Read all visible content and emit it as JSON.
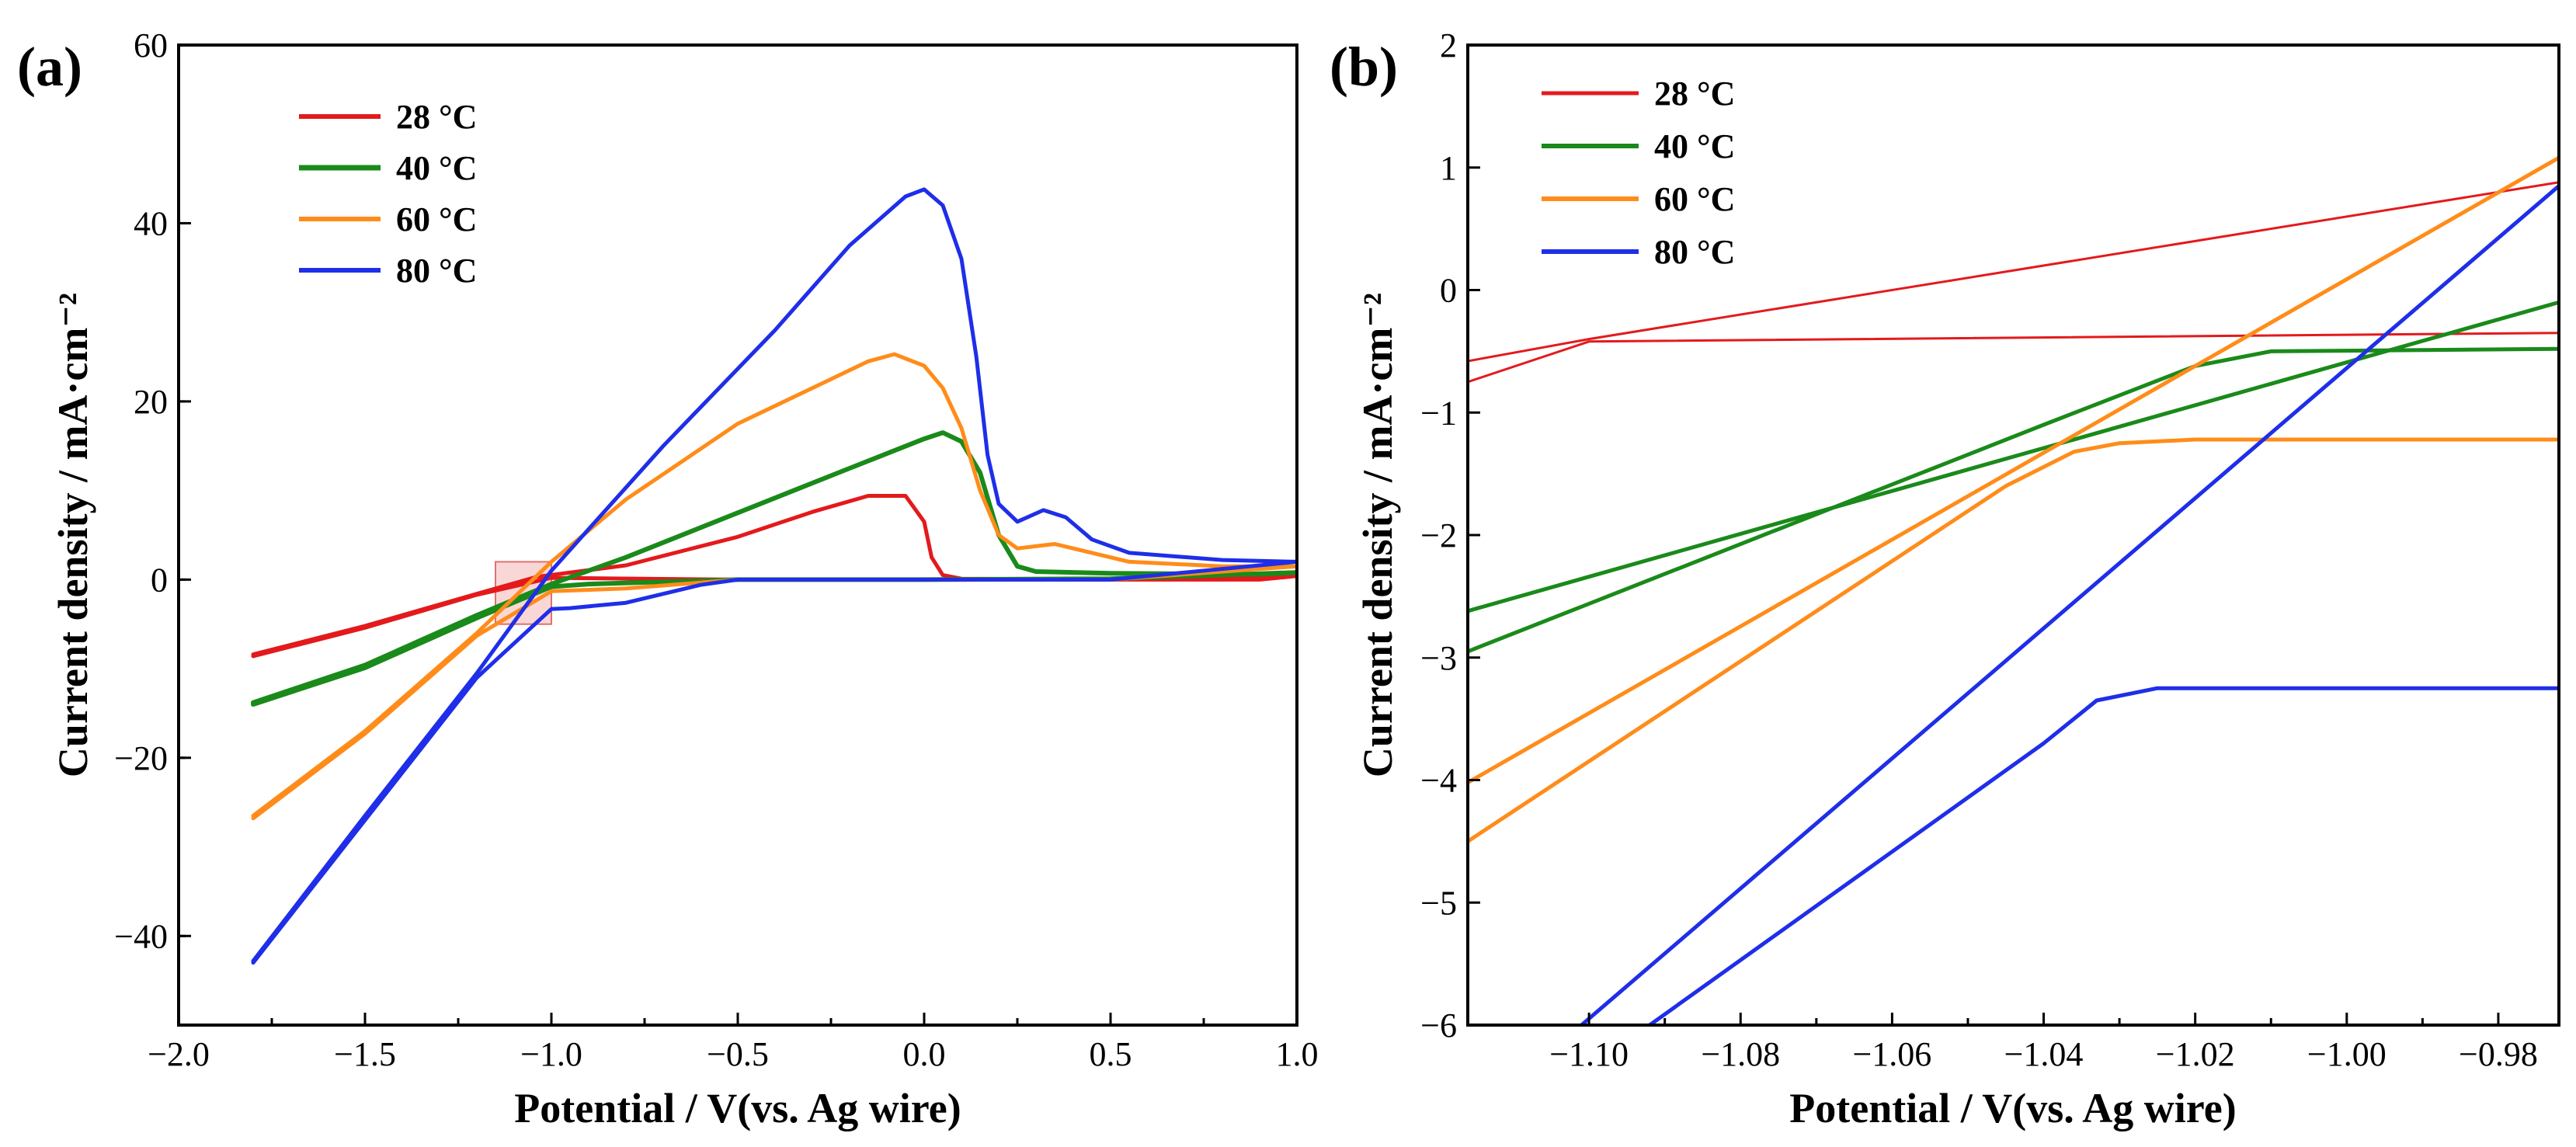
{
  "chart_data": [
    {
      "panel_label": "(a)",
      "type": "line",
      "xlabel": "Potential / V(vs. Ag wire)",
      "ylabel": "Current density / mA·cm⁻²",
      "xlim": [
        -2.0,
        1.0
      ],
      "ylim": [
        -50,
        60
      ],
      "xticks": [
        -2.0,
        -1.5,
        -1.0,
        -0.5,
        0.0,
        0.5,
        1.0
      ],
      "xtick_labels": [
        "−2.0",
        "−1.5",
        "−1.0",
        "−0.5",
        "0.0",
        "0.5",
        "1.0"
      ],
      "yticks": [
        -40,
        -20,
        0,
        20,
        40,
        60
      ],
      "ytick_labels": [
        "−40",
        "−20",
        "0",
        "20",
        "40",
        "60"
      ],
      "legend_position": "top-left",
      "highlight_box": {
        "x": [
          -1.15,
          -1.0
        ],
        "y": [
          -5,
          2
        ],
        "color": "#f4a6a6"
      },
      "series": [
        {
          "name": "28 °C",
          "color": "#e31a1c",
          "width": 5,
          "paths": [
            [
              [
                -1.8,
                -8.4
              ],
              [
                -1.5,
                -5.2
              ],
              [
                -1.2,
                -1.6
              ],
              [
                -1.04,
                0.3
              ],
              [
                -0.8,
                1.6
              ],
              [
                -0.5,
                4.8
              ],
              [
                -0.3,
                7.6
              ],
              [
                -0.15,
                9.4
              ],
              [
                -0.05,
                9.4
              ],
              [
                0.0,
                6.5
              ],
              [
                0.02,
                2.5
              ],
              [
                0.05,
                0.5
              ],
              [
                0.1,
                0.1
              ],
              [
                0.5,
                0
              ],
              [
                0.9,
                0
              ],
              [
                1.0,
                0.4
              ]
            ],
            [
              [
                1.0,
                0.4
              ],
              [
                0.5,
                0
              ],
              [
                0.0,
                0
              ],
              [
                -0.5,
                0
              ],
              [
                -1.0,
                0.2
              ],
              [
                -1.2,
                -1.7
              ],
              [
                -1.5,
                -5.4
              ],
              [
                -1.8,
                -8.6
              ]
            ]
          ]
        },
        {
          "name": "40 °C",
          "color": "#1a8a1a",
          "width": 6,
          "paths": [
            [
              [
                -1.8,
                -13.8
              ],
              [
                -1.5,
                -9.6
              ],
              [
                -1.2,
                -4.0
              ],
              [
                -1.0,
                -0.5
              ],
              [
                -0.8,
                2.5
              ],
              [
                -0.5,
                7.5
              ],
              [
                -0.2,
                12.5
              ],
              [
                0.0,
                15.8
              ],
              [
                0.05,
                16.5
              ],
              [
                0.1,
                15.5
              ],
              [
                0.15,
                12.0
              ],
              [
                0.2,
                5.0
              ],
              [
                0.25,
                1.5
              ],
              [
                0.3,
                0.9
              ],
              [
                0.5,
                0.7
              ],
              [
                0.9,
                0.6
              ],
              [
                1.0,
                0.8
              ]
            ],
            [
              [
                1.0,
                0.8
              ],
              [
                0.5,
                0.1
              ],
              [
                0.0,
                0
              ],
              [
                -0.5,
                0
              ],
              [
                -0.9,
                -0.5
              ],
              [
                -1.0,
                -0.8
              ],
              [
                -1.2,
                -4.3
              ],
              [
                -1.5,
                -9.9
              ],
              [
                -1.8,
                -14.0
              ]
            ]
          ]
        },
        {
          "name": "60 °C",
          "color": "#ff8c1a",
          "width": 5,
          "paths": [
            [
              [
                -1.8,
                -26.5
              ],
              [
                -1.5,
                -17.0
              ],
              [
                -1.2,
                -6.0
              ],
              [
                -1.0,
                2.0
              ],
              [
                -0.8,
                9.0
              ],
              [
                -0.5,
                17.5
              ],
              [
                -0.3,
                21.5
              ],
              [
                -0.15,
                24.5
              ],
              [
                -0.08,
                25.3
              ],
              [
                0.0,
                24.0
              ],
              [
                0.05,
                21.5
              ],
              [
                0.1,
                17.0
              ],
              [
                0.15,
                10.0
              ],
              [
                0.2,
                5.0
              ],
              [
                0.25,
                3.5
              ],
              [
                0.35,
                4.0
              ],
              [
                0.45,
                3.0
              ],
              [
                0.55,
                2.0
              ],
              [
                0.8,
                1.5
              ],
              [
                1.0,
                1.5
              ]
            ],
            [
              [
                1.0,
                1.5
              ],
              [
                0.5,
                0
              ],
              [
                0.0,
                0
              ],
              [
                -0.5,
                0
              ],
              [
                -0.8,
                -1.0
              ],
              [
                -1.0,
                -1.3
              ],
              [
                -1.2,
                -6.3
              ],
              [
                -1.5,
                -17.3
              ],
              [
                -1.8,
                -26.8
              ]
            ]
          ]
        },
        {
          "name": "80 °C",
          "color": "#1f2ee8",
          "width": 5,
          "paths": [
            [
              [
                -1.8,
                -42.8
              ],
              [
                -1.5,
                -26.5
              ],
              [
                -1.2,
                -10.5
              ],
              [
                -1.0,
                1.0
              ],
              [
                -0.7,
                15.0
              ],
              [
                -0.4,
                28.0
              ],
              [
                -0.2,
                37.5
              ],
              [
                -0.05,
                43.0
              ],
              [
                0.0,
                43.8
              ],
              [
                0.05,
                42.0
              ],
              [
                0.1,
                36.0
              ],
              [
                0.14,
                25.0
              ],
              [
                0.17,
                14.0
              ],
              [
                0.2,
                8.5
              ],
              [
                0.25,
                6.5
              ],
              [
                0.32,
                7.8
              ],
              [
                0.38,
                7.0
              ],
              [
                0.45,
                4.5
              ],
              [
                0.55,
                3.0
              ],
              [
                0.8,
                2.2
              ],
              [
                1.0,
                2.0
              ]
            ],
            [
              [
                1.0,
                2.0
              ],
              [
                0.5,
                0
              ],
              [
                0.0,
                0
              ],
              [
                -0.5,
                0
              ],
              [
                -0.6,
                -0.6
              ],
              [
                -0.8,
                -2.6
              ],
              [
                -0.95,
                -3.2
              ],
              [
                -1.0,
                -3.3
              ],
              [
                -1.2,
                -11.0
              ],
              [
                -1.5,
                -27.0
              ],
              [
                -1.8,
                -43.0
              ]
            ]
          ]
        }
      ]
    },
    {
      "panel_label": "(b)",
      "type": "line",
      "xlabel": "Potential / V(vs. Ag wire)",
      "ylabel": "Current density / mA·cm⁻²",
      "xlim": [
        -1.116,
        -0.972
      ],
      "ylim": [
        -6,
        2
      ],
      "xticks": [
        -1.1,
        -1.08,
        -1.06,
        -1.04,
        -1.02,
        -1.0,
        -0.98
      ],
      "xtick_labels": [
        "−1.10",
        "−1.08",
        "−1.06",
        "−1.04",
        "−1.02",
        "−1.00",
        "−0.98"
      ],
      "yticks": [
        -6,
        -5,
        -4,
        -3,
        -2,
        -1,
        0,
        1,
        2
      ],
      "ytick_labels": [
        "−6",
        "−5",
        "−4",
        "−3",
        "−2",
        "−1",
        "0",
        "1",
        "2"
      ],
      "legend_position": "top-left",
      "series": [
        {
          "name": "28 °C",
          "color": "#e31a1c",
          "width": 3,
          "paths": [
            [
              [
                -1.116,
                -0.58
              ],
              [
                -1.1,
                -0.4
              ],
              [
                -0.972,
                0.88
              ]
            ],
            [
              [
                -1.116,
                -0.75
              ],
              [
                -1.1,
                -0.42
              ],
              [
                -0.972,
                -0.35
              ]
            ]
          ]
        },
        {
          "name": "40 °C",
          "color": "#1a8a1a",
          "width": 5,
          "paths": [
            [
              [
                -1.116,
                -2.62
              ],
              [
                -0.972,
                -0.1
              ]
            ],
            [
              [
                -1.116,
                -2.95
              ],
              [
                -1.04,
                -1.1
              ],
              [
                -1.02,
                -0.62
              ],
              [
                -1.01,
                -0.5
              ],
              [
                -0.972,
                -0.48
              ]
            ]
          ]
        },
        {
          "name": "60 °C",
          "color": "#ff8c1a",
          "width": 5,
          "paths": [
            [
              [
                -1.116,
                -4.02
              ],
              [
                -0.972,
                1.08
              ]
            ],
            [
              [
                -1.116,
                -4.5
              ],
              [
                -1.045,
                -1.6
              ],
              [
                -1.036,
                -1.32
              ],
              [
                -1.03,
                -1.25
              ],
              [
                -1.02,
                -1.22
              ],
              [
                -0.972,
                -1.22
              ]
            ]
          ]
        },
        {
          "name": "80 °C",
          "color": "#1f2ee8",
          "width": 5,
          "paths": [
            [
              [
                -1.101,
                -6.0
              ],
              [
                -0.972,
                0.85
              ]
            ],
            [
              [
                -1.092,
                -6.0
              ],
              [
                -1.04,
                -3.7
              ],
              [
                -1.033,
                -3.35
              ],
              [
                -1.025,
                -3.25
              ],
              [
                -0.972,
                -3.25
              ]
            ]
          ]
        }
      ]
    }
  ]
}
